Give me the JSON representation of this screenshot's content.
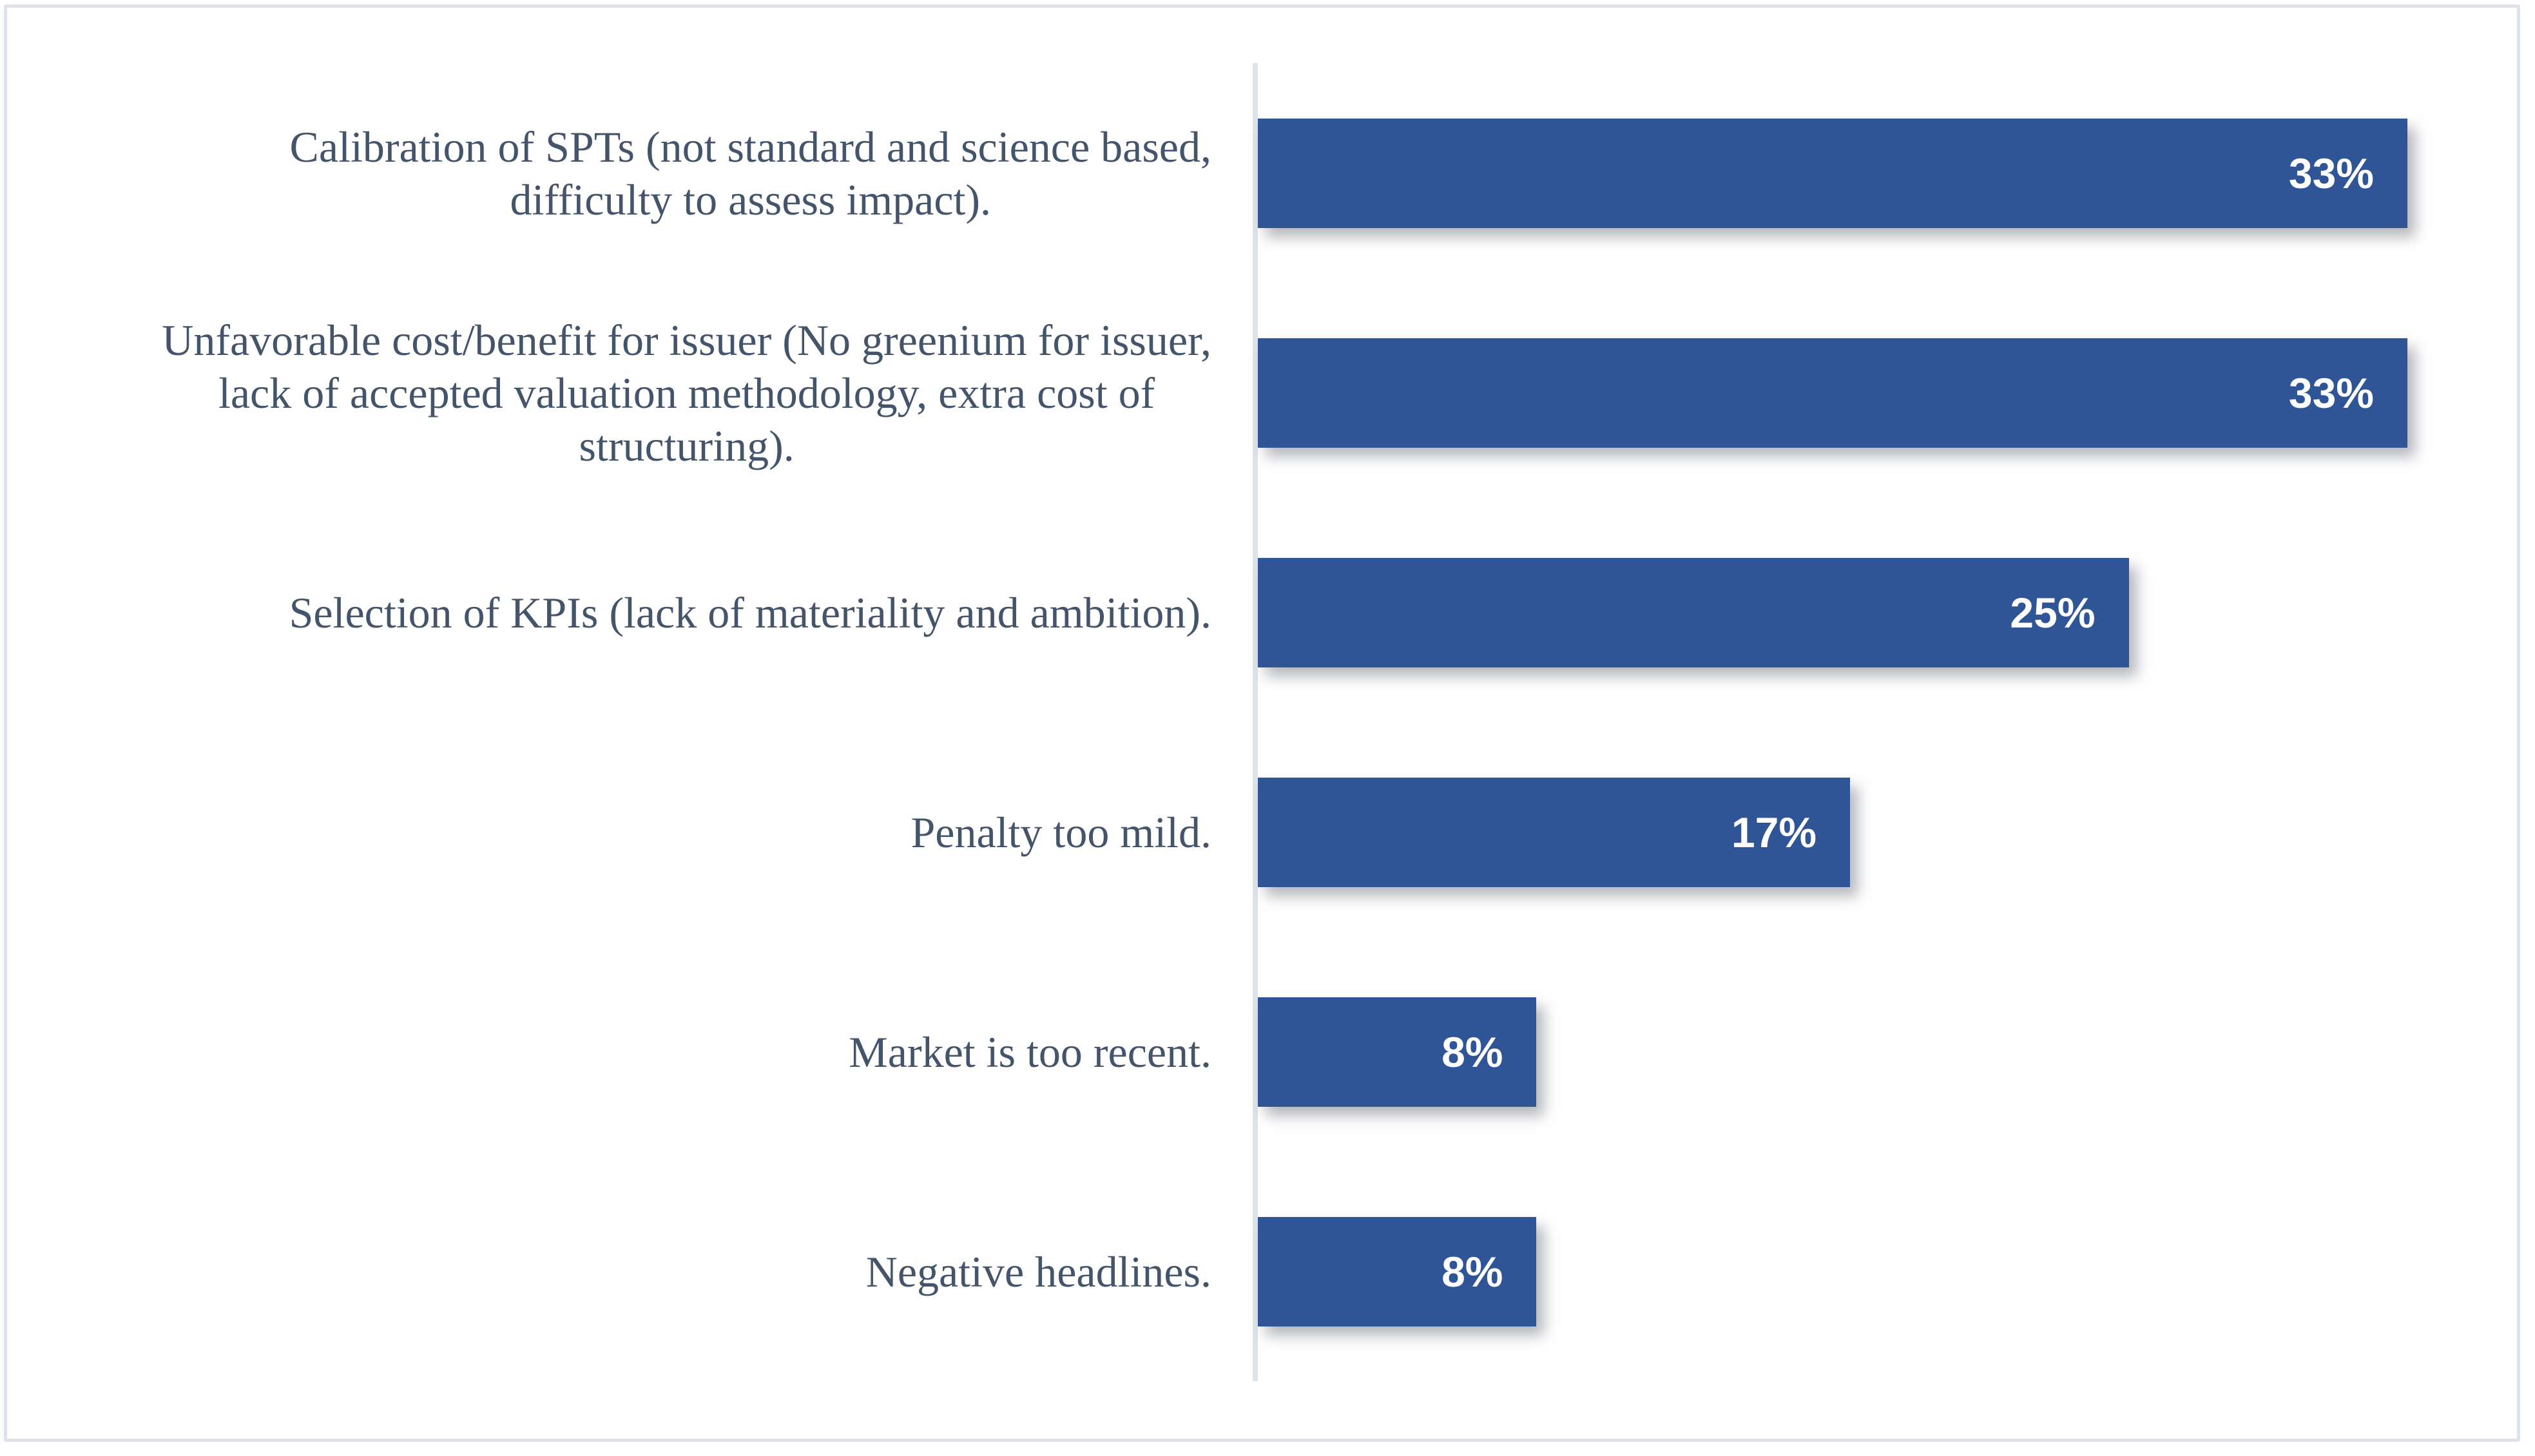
{
  "colors": {
    "background": "#FFFFFF",
    "frame_border": "#DEE3EB",
    "axis_line": "#DEE3EB",
    "bar": "#2F5596",
    "category_text": "#44546A",
    "value_text": "#FFFFFF"
  },
  "chart_data": {
    "type": "bar",
    "orientation": "horizontal",
    "title": "",
    "xlabel": "",
    "ylabel": "",
    "x_axis_labels_visible": false,
    "grid": false,
    "legend": false,
    "xlim": [
      0,
      36.2
    ],
    "categories": [
      "Calibration of SPTs (not standard and science based,\ndifficulty to assess impact).",
      "Unfavorable cost/benefit for issuer (No greenium for issuer,\nlack of accepted valuation methodology, extra cost of\nstructuring).",
      "Selection of KPIs (lack of materiality and ambition).",
      "Penalty too mild.",
      "Market is too recent.",
      "Negative headlines."
    ],
    "values": [
      33,
      33,
      25,
      17,
      8,
      8
    ],
    "value_labels": [
      "33%",
      "33%",
      "25%",
      "17%",
      "8%",
      "8%"
    ]
  }
}
